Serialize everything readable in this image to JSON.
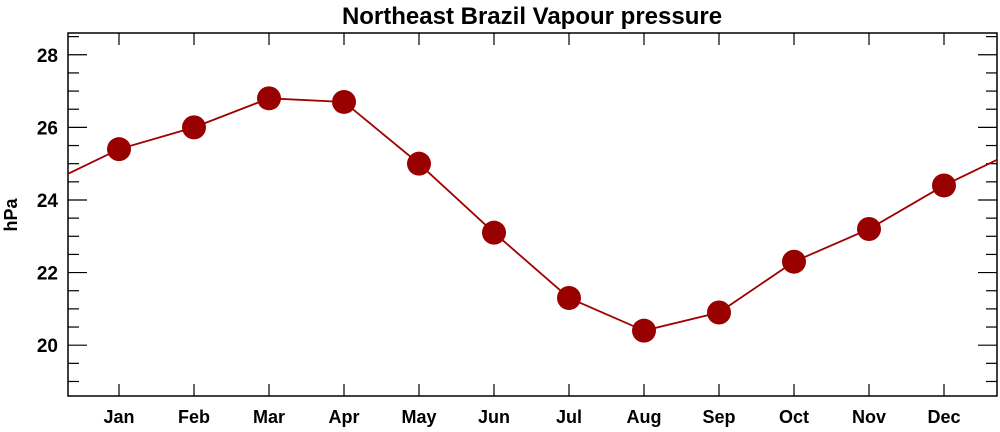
{
  "chart_data": {
    "type": "line",
    "title": "Northeast Brazil Vapour pressure",
    "xlabel": "",
    "ylabel": "hPa",
    "categories": [
      "Jan",
      "Feb",
      "Mar",
      "Apr",
      "May",
      "Jun",
      "Jul",
      "Aug",
      "Sep",
      "Oct",
      "Nov",
      "Dec"
    ],
    "series": [
      {
        "name": "Vapour pressure",
        "values": [
          25.4,
          26.0,
          26.8,
          26.7,
          25.0,
          23.1,
          21.3,
          20.4,
          20.9,
          22.3,
          23.2,
          24.4
        ]
      }
    ],
    "ylim": [
      18.6,
      28.6
    ],
    "yticks": [
      20,
      22,
      24,
      26,
      28
    ],
    "minor_ytick_step": 0.5,
    "grid": false,
    "line_color": "#a00000",
    "marker_color": "#990000"
  }
}
